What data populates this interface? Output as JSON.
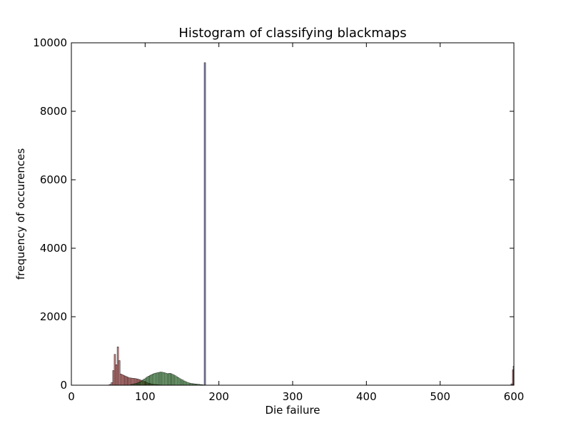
{
  "chart_data": {
    "type": "bar",
    "title": "Histogram of classifying blackmaps",
    "xlabel": "Die failure",
    "ylabel": "frequency of occurences",
    "xlim": [
      0,
      600
    ],
    "ylim": [
      0,
      10000
    ],
    "xticks": [
      0,
      100,
      200,
      300,
      400,
      500,
      600
    ],
    "yticks": [
      0,
      2000,
      4000,
      6000,
      8000,
      10000
    ],
    "bin_width": 2,
    "grid": false,
    "legend": "none",
    "series": [
      {
        "color": "#8b0000",
        "bins": [
          {
            "x": 50,
            "y": 10
          },
          {
            "x": 52,
            "y": 25
          },
          {
            "x": 54,
            "y": 80
          },
          {
            "x": 56,
            "y": 430
          },
          {
            "x": 58,
            "y": 900
          },
          {
            "x": 60,
            "y": 600
          },
          {
            "x": 62,
            "y": 1120
          },
          {
            "x": 64,
            "y": 720
          },
          {
            "x": 66,
            "y": 330
          },
          {
            "x": 68,
            "y": 310
          },
          {
            "x": 70,
            "y": 290
          },
          {
            "x": 72,
            "y": 270
          },
          {
            "x": 74,
            "y": 250
          },
          {
            "x": 76,
            "y": 230
          },
          {
            "x": 78,
            "y": 215
          },
          {
            "x": 80,
            "y": 210
          },
          {
            "x": 82,
            "y": 205
          },
          {
            "x": 84,
            "y": 200
          },
          {
            "x": 86,
            "y": 195
          },
          {
            "x": 88,
            "y": 185
          },
          {
            "x": 90,
            "y": 175
          },
          {
            "x": 92,
            "y": 160
          },
          {
            "x": 94,
            "y": 145
          },
          {
            "x": 96,
            "y": 130
          },
          {
            "x": 98,
            "y": 110
          },
          {
            "x": 100,
            "y": 90
          },
          {
            "x": 102,
            "y": 75
          },
          {
            "x": 104,
            "y": 60
          },
          {
            "x": 106,
            "y": 50
          },
          {
            "x": 108,
            "y": 40
          },
          {
            "x": 110,
            "y": 30
          },
          {
            "x": 112,
            "y": 25
          },
          {
            "x": 114,
            "y": 20
          },
          {
            "x": 116,
            "y": 15
          },
          {
            "x": 118,
            "y": 10
          },
          {
            "x": 120,
            "y": 8
          },
          {
            "x": 596,
            "y": 40
          },
          {
            "x": 598,
            "y": 450
          },
          {
            "x": 599,
            "y": 560
          }
        ]
      },
      {
        "color": "#006400",
        "bins": [
          {
            "x": 80,
            "y": 20
          },
          {
            "x": 82,
            "y": 30
          },
          {
            "x": 84,
            "y": 40
          },
          {
            "x": 86,
            "y": 50
          },
          {
            "x": 88,
            "y": 60
          },
          {
            "x": 90,
            "y": 80
          },
          {
            "x": 92,
            "y": 100
          },
          {
            "x": 94,
            "y": 120
          },
          {
            "x": 96,
            "y": 150
          },
          {
            "x": 98,
            "y": 180
          },
          {
            "x": 100,
            "y": 210
          },
          {
            "x": 102,
            "y": 240
          },
          {
            "x": 104,
            "y": 265
          },
          {
            "x": 106,
            "y": 290
          },
          {
            "x": 108,
            "y": 310
          },
          {
            "x": 110,
            "y": 330
          },
          {
            "x": 112,
            "y": 345
          },
          {
            "x": 114,
            "y": 355
          },
          {
            "x": 116,
            "y": 365
          },
          {
            "x": 118,
            "y": 375
          },
          {
            "x": 120,
            "y": 385
          },
          {
            "x": 122,
            "y": 380
          },
          {
            "x": 124,
            "y": 370
          },
          {
            "x": 126,
            "y": 360
          },
          {
            "x": 128,
            "y": 345
          },
          {
            "x": 130,
            "y": 335
          },
          {
            "x": 132,
            "y": 350
          },
          {
            "x": 134,
            "y": 340
          },
          {
            "x": 136,
            "y": 320
          },
          {
            "x": 138,
            "y": 300
          },
          {
            "x": 140,
            "y": 275
          },
          {
            "x": 142,
            "y": 250
          },
          {
            "x": 144,
            "y": 225
          },
          {
            "x": 146,
            "y": 195
          },
          {
            "x": 148,
            "y": 170
          },
          {
            "x": 150,
            "y": 150
          },
          {
            "x": 152,
            "y": 125
          },
          {
            "x": 154,
            "y": 105
          },
          {
            "x": 156,
            "y": 85
          },
          {
            "x": 158,
            "y": 70
          },
          {
            "x": 160,
            "y": 60
          },
          {
            "x": 162,
            "y": 50
          },
          {
            "x": 164,
            "y": 45
          },
          {
            "x": 166,
            "y": 40
          },
          {
            "x": 168,
            "y": 35
          },
          {
            "x": 170,
            "y": 30
          },
          {
            "x": 172,
            "y": 25
          },
          {
            "x": 174,
            "y": 20
          },
          {
            "x": 176,
            "y": 15
          },
          {
            "x": 178,
            "y": 10
          }
        ]
      },
      {
        "color": "#00004d",
        "bins": [
          {
            "x": 180,
            "y": 9420
          }
        ]
      }
    ]
  }
}
